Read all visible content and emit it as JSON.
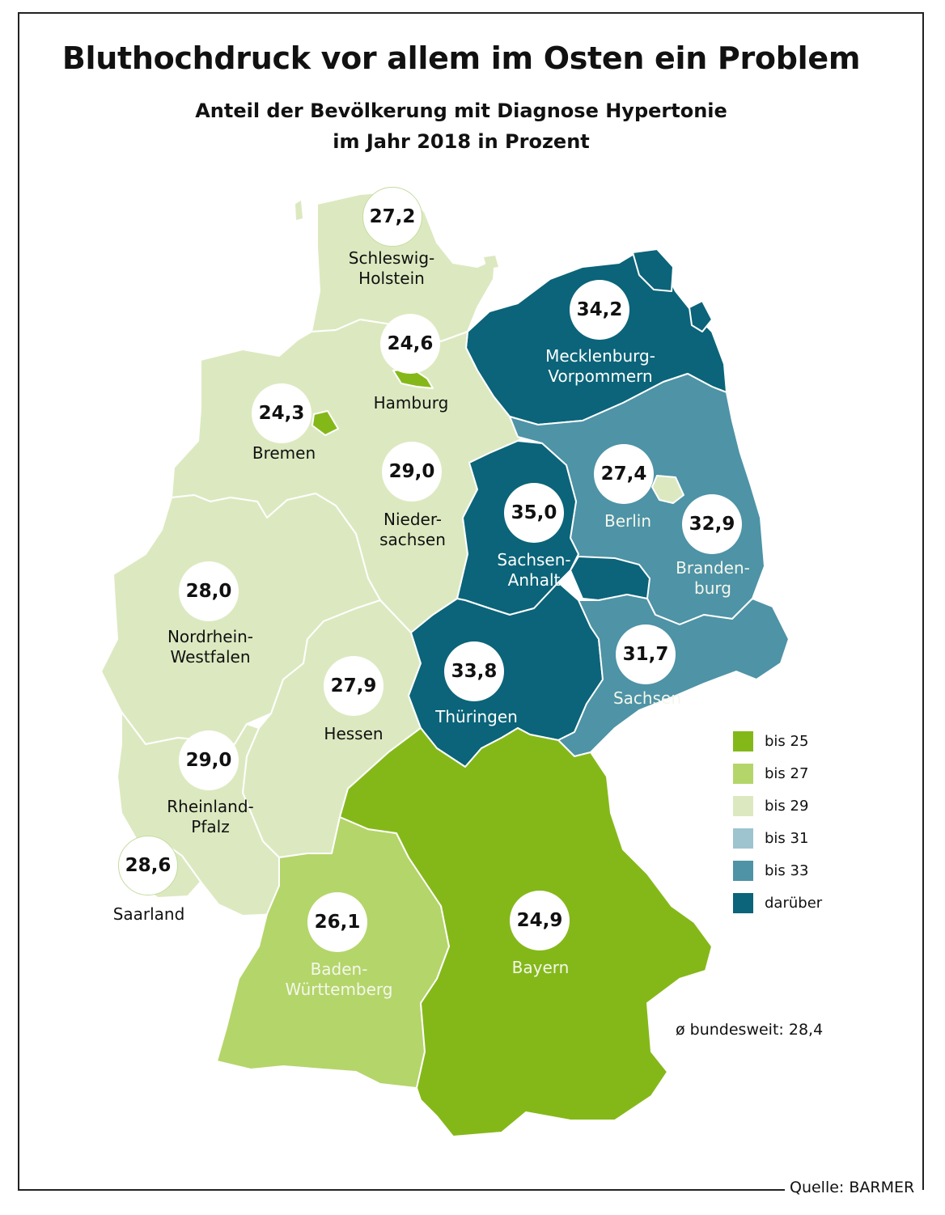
{
  "title": "Bluthochdruck vor allem im Osten ein Problem",
  "subtitle_line1": "Anteil der Bevölkerung mit Diagnose Hypertonie",
  "subtitle_line2": "im Jahr 2018 in Prozent",
  "source": "Quelle: BARMER",
  "national_average": "ø bundesweit: 28,4",
  "colors": {
    "bis_25": "#84b819",
    "bis_27": "#b4d56a",
    "bis_29": "#dce9c0",
    "bis_31": "#9dc4cf",
    "bis_33": "#4e93a6",
    "darueber": "#0b6479"
  },
  "legend": [
    {
      "label": "bis 25",
      "color": "#84b819"
    },
    {
      "label": "bis 27",
      "color": "#b4d56a"
    },
    {
      "label": "bis 29",
      "color": "#dce9c0"
    },
    {
      "label": "bis 31",
      "color": "#9dc4cf"
    },
    {
      "label": "bis 33",
      "color": "#4e93a6"
    },
    {
      "label": "darüber",
      "color": "#0b6479"
    }
  ],
  "states": {
    "schleswig_holstein": {
      "value": "27,2",
      "name_line1": "Schleswig-",
      "name_line2": "Holstein"
    },
    "hamburg": {
      "value": "24,6",
      "name_line1": "Hamburg"
    },
    "bremen": {
      "value": "24,3",
      "name_line1": "Bremen"
    },
    "mecklenburg_vorpommern": {
      "value": "34,2",
      "name_line1": "Mecklenburg-",
      "name_line2": "Vorpommern"
    },
    "niedersachsen": {
      "value": "29,0",
      "name_line1": "Nieder-",
      "name_line2": "sachsen"
    },
    "berlin": {
      "value": "27,4",
      "name_line1": "Berlin"
    },
    "brandenburg": {
      "value": "32,9",
      "name_line1": "Branden-",
      "name_line2": "burg"
    },
    "sachsen_anhalt": {
      "value": "35,0",
      "name_line1": "Sachsen-",
      "name_line2": "Anhalt"
    },
    "nordrhein_westfalen": {
      "value": "28,0",
      "name_line1": "Nordrhein-",
      "name_line2": "Westfalen"
    },
    "hessen": {
      "value": "27,9",
      "name_line1": "Hessen"
    },
    "thueringen": {
      "value": "33,8",
      "name_line1": "Thüringen"
    },
    "sachsen": {
      "value": "31,7",
      "name_line1": "Sachsen"
    },
    "rheinland_pfalz": {
      "value": "29,0",
      "name_line1": "Rheinland-",
      "name_line2": "Pfalz"
    },
    "saarland": {
      "value": "28,6",
      "name_line1": "Saarland"
    },
    "baden_wuerttemberg": {
      "value": "26,1",
      "name_line1": "Baden-",
      "name_line2": "Württemberg"
    },
    "bayern": {
      "value": "24,9",
      "name_line1": "Bayern"
    }
  }
}
